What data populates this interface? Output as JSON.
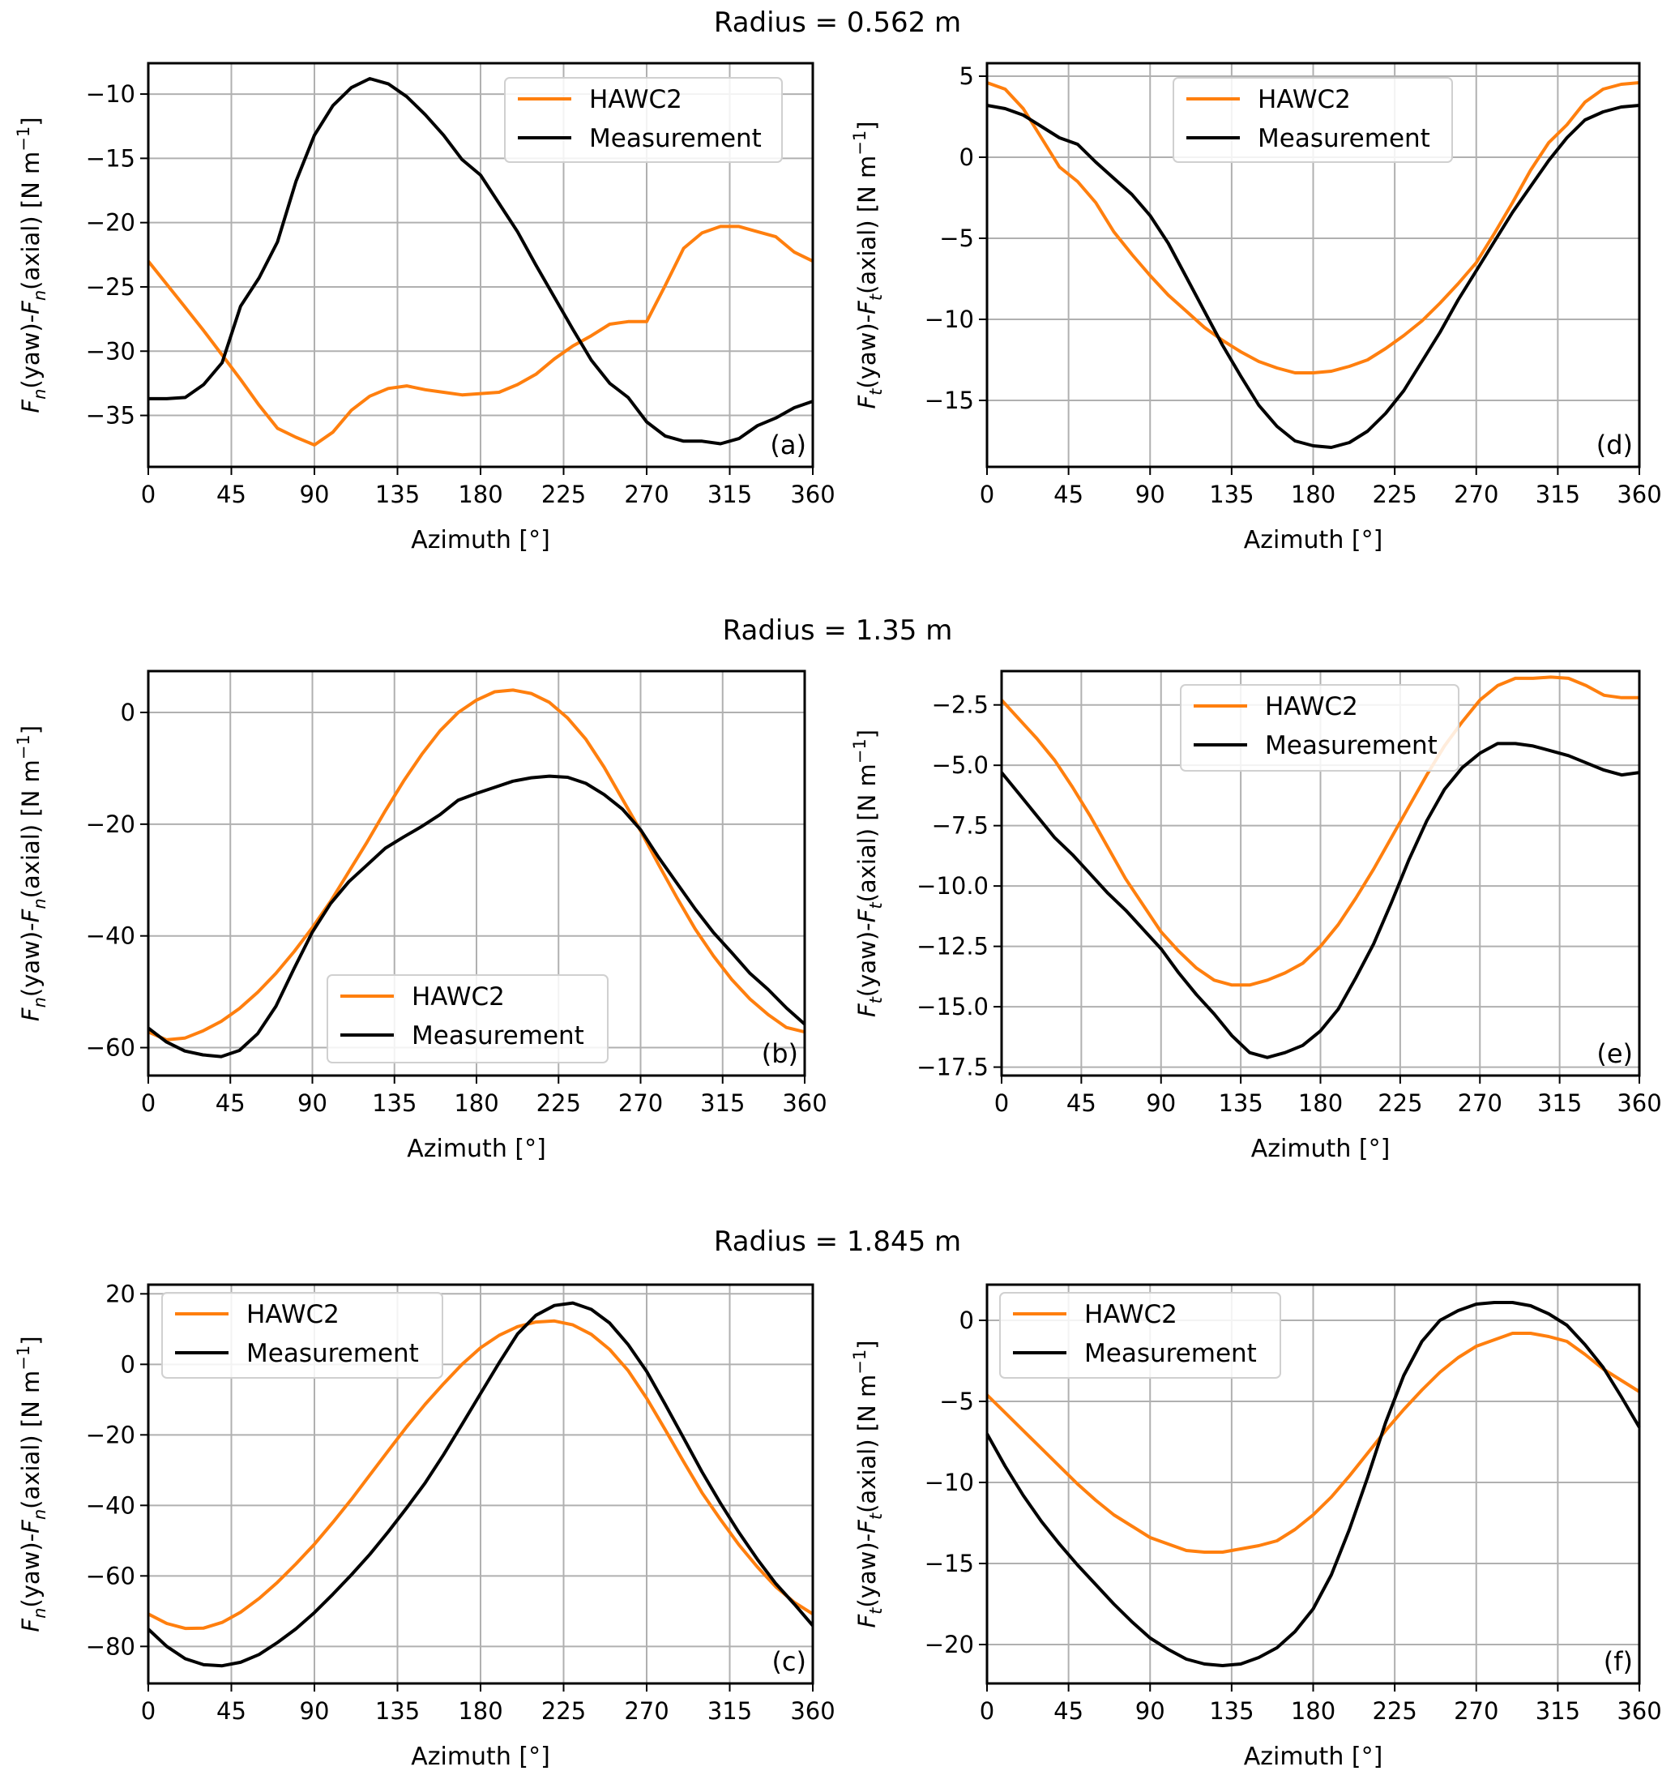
{
  "row_titles": [
    "Radius = 0.562 m",
    "Radius = 1.35 m",
    "Radius = 1.845 m"
  ],
  "colors": {
    "hawc2": "#ff7f0e",
    "measurement": "#000000",
    "grid": "#b0b0b0"
  },
  "chart_data": [
    {
      "type": "line",
      "panel": "(a)",
      "row_title": "Radius = 0.562 m",
      "xlabel": "Azimuth [°]",
      "ylabel": "F_n(yaw)-F_n(axial) [N m^-1]",
      "xlim": [
        0,
        360
      ],
      "ylim": [
        -39,
        -7.6
      ],
      "xticks": [
        0,
        45,
        90,
        135,
        180,
        225,
        270,
        315,
        360
      ],
      "yticks": [
        -35,
        -30,
        -25,
        -20,
        -15,
        -10
      ],
      "ytick_labels": [
        "−35",
        "−30",
        "−25",
        "−20",
        "−15",
        "−10"
      ],
      "grid": true,
      "legend": "top-right",
      "panel_label_pos": "bottom-right",
      "x": [
        0,
        10,
        20,
        30,
        40,
        50,
        60,
        70,
        80,
        90,
        100,
        110,
        120,
        130,
        140,
        150,
        160,
        170,
        180,
        190,
        200,
        210,
        220,
        230,
        240,
        250,
        260,
        270,
        280,
        290,
        300,
        310,
        320,
        330,
        340,
        350,
        360
      ],
      "series": [
        {
          "name": "HAWC2",
          "values": [
            -23,
            -24.8,
            -26.6,
            -28.4,
            -30.3,
            -32.2,
            -34.2,
            -36,
            -36.7,
            -37.3,
            -36.3,
            -34.6,
            -33.5,
            -32.9,
            -32.7,
            -33,
            -33.2,
            -33.4,
            -33.3,
            -33.2,
            -32.6,
            -31.8,
            -30.6,
            -29.6,
            -28.8,
            -27.9,
            -27.7,
            -27.7,
            -24.9,
            -22,
            -20.8,
            -20.3,
            -20.3,
            -20.7,
            -21.1,
            -22.3,
            -23
          ]
        },
        {
          "name": "Measurement",
          "values": [
            -33.7,
            -33.7,
            -33.6,
            -32.6,
            -30.9,
            -26.5,
            -24.3,
            -21.5,
            -16.8,
            -13.2,
            -10.9,
            -9.5,
            -8.8,
            -9.2,
            -10.2,
            -11.6,
            -13.2,
            -15.1,
            -16.3,
            -18.5,
            -20.7,
            -23.3,
            -25.8,
            -28.3,
            -30.7,
            -32.5,
            -33.6,
            -35.5,
            -36.6,
            -37,
            -37,
            -37.2,
            -36.8,
            -35.8,
            -35.2,
            -34.4,
            -33.9
          ]
        }
      ]
    },
    {
      "type": "line",
      "panel": "(d)",
      "row_title": "Radius = 0.562 m",
      "xlabel": "Azimuth [°]",
      "ylabel": "F_t(yaw)-F_t(axial) [N m^-1]",
      "xlim": [
        0,
        360
      ],
      "ylim": [
        -19.1,
        5.8
      ],
      "xticks": [
        0,
        45,
        90,
        135,
        180,
        225,
        270,
        315,
        360
      ],
      "yticks": [
        -15,
        -10,
        -5,
        0,
        5
      ],
      "ytick_labels": [
        "−15",
        "−10",
        "−5",
        "0",
        "5"
      ],
      "grid": true,
      "legend": "top-center",
      "panel_label_pos": "bottom-right",
      "x": [
        0,
        10,
        20,
        30,
        40,
        50,
        60,
        70,
        80,
        90,
        100,
        110,
        120,
        130,
        140,
        150,
        160,
        170,
        180,
        190,
        200,
        210,
        220,
        230,
        240,
        250,
        260,
        270,
        280,
        290,
        300,
        310,
        320,
        330,
        340,
        350,
        360
      ],
      "series": [
        {
          "name": "HAWC2",
          "values": [
            4.6,
            4.2,
            3,
            1.2,
            -0.6,
            -1.5,
            -2.8,
            -4.6,
            -6,
            -7.3,
            -8.5,
            -9.5,
            -10.5,
            -11.3,
            -12,
            -12.6,
            -13,
            -13.3,
            -13.3,
            -13.2,
            -12.9,
            -12.5,
            -11.8,
            -11,
            -10.1,
            -9,
            -7.8,
            -6.5,
            -4.7,
            -2.8,
            -0.8,
            0.9,
            2,
            3.4,
            4.2,
            4.5,
            4.6
          ]
        },
        {
          "name": "Measurement",
          "values": [
            3.2,
            3,
            2.6,
            1.9,
            1.2,
            0.8,
            -0.3,
            -1.3,
            -2.3,
            -3.6,
            -5.3,
            -7.4,
            -9.5,
            -11.6,
            -13.5,
            -15.3,
            -16.6,
            -17.5,
            -17.8,
            -17.9,
            -17.6,
            -16.9,
            -15.8,
            -14.4,
            -12.6,
            -10.8,
            -8.8,
            -7,
            -5.2,
            -3.4,
            -1.8,
            -0.2,
            1.2,
            2.3,
            2.8,
            3.1,
            3.2
          ]
        }
      ]
    },
    {
      "type": "line",
      "panel": "(b)",
      "row_title": "Radius = 1.35 m",
      "xlabel": "Azimuth [°]",
      "ylabel": "F_n(yaw)-F_n(axial) [N m^-1]",
      "xlim": [
        0,
        360
      ],
      "ylim": [
        -65,
        7.4
      ],
      "xticks": [
        0,
        45,
        90,
        135,
        180,
        225,
        270,
        315,
        360
      ],
      "yticks": [
        -60,
        -40,
        -20,
        0
      ],
      "ytick_labels": [
        "−60",
        "−40",
        "−20",
        "0"
      ],
      "grid": true,
      "legend": "bottom-center",
      "panel_label_pos": "bottom-right",
      "x": [
        0,
        10,
        20,
        30,
        40,
        50,
        60,
        70,
        80,
        90,
        100,
        110,
        120,
        130,
        140,
        150,
        160,
        170,
        180,
        190,
        200,
        210,
        220,
        230,
        240,
        250,
        260,
        270,
        280,
        290,
        300,
        310,
        320,
        330,
        340,
        350,
        360
      ],
      "series": [
        {
          "name": "HAWC2",
          "values": [
            -57.2,
            -58.6,
            -58.3,
            -57,
            -55.3,
            -53,
            -50.1,
            -46.7,
            -42.8,
            -38.5,
            -33.8,
            -28.5,
            -23.2,
            -17.6,
            -12.3,
            -7.5,
            -3.3,
            0,
            2.2,
            3.7,
            4,
            3.4,
            1.8,
            -1,
            -4.8,
            -9.8,
            -15.5,
            -21.2,
            -27.3,
            -33.2,
            -38.8,
            -43.6,
            -47.8,
            -51.3,
            -54.1,
            -56.4,
            -57.2
          ]
        },
        {
          "name": "Measurement",
          "values": [
            -56.5,
            -59,
            -60.6,
            -61.3,
            -61.6,
            -60.5,
            -57.5,
            -52.6,
            -45.8,
            -39.3,
            -34.2,
            -30.3,
            -27.3,
            -24.3,
            -22.3,
            -20.4,
            -18.3,
            -15.7,
            -14.5,
            -13.4,
            -12.3,
            -11.7,
            -11.4,
            -11.6,
            -12.7,
            -14.7,
            -17.3,
            -21,
            -26,
            -30.6,
            -35.2,
            -39.4,
            -43,
            -46.7,
            -49.6,
            -52.9,
            -55.8
          ]
        }
      ]
    },
    {
      "type": "line",
      "panel": "(e)",
      "row_title": "Radius = 1.35 m",
      "xlabel": "Azimuth [°]",
      "ylabel": "F_t(yaw)-F_t(axial) [N m^-1]",
      "xlim": [
        0,
        360
      ],
      "ylim": [
        -17.85,
        -1.1
      ],
      "xticks": [
        0,
        45,
        90,
        135,
        180,
        225,
        270,
        315,
        360
      ],
      "yticks": [
        -17.5,
        -15.0,
        -12.5,
        -10.0,
        -7.5,
        -5.0,
        -2.5
      ],
      "ytick_labels": [
        "−17.5",
        "−15.0",
        "−12.5",
        "−10.0",
        "−7.5",
        "−5.0",
        "−2.5"
      ],
      "grid": true,
      "legend": "top-center",
      "panel_label_pos": "bottom-right",
      "x": [
        0,
        10,
        20,
        30,
        40,
        50,
        60,
        70,
        80,
        90,
        100,
        110,
        120,
        130,
        140,
        150,
        160,
        170,
        180,
        190,
        200,
        210,
        220,
        230,
        240,
        250,
        260,
        270,
        280,
        290,
        300,
        310,
        320,
        330,
        340,
        350,
        360
      ],
      "series": [
        {
          "name": "HAWC2",
          "values": [
            -2.3,
            -3.1,
            -3.9,
            -4.8,
            -5.9,
            -7.1,
            -8.4,
            -9.7,
            -10.8,
            -11.9,
            -12.7,
            -13.4,
            -13.9,
            -14.1,
            -14.1,
            -13.9,
            -13.6,
            -13.2,
            -12.5,
            -11.6,
            -10.5,
            -9.3,
            -8,
            -6.7,
            -5.4,
            -4.2,
            -3.2,
            -2.3,
            -1.7,
            -1.4,
            -1.4,
            -1.35,
            -1.4,
            -1.7,
            -2.1,
            -2.2,
            -2.2
          ]
        },
        {
          "name": "Measurement",
          "values": [
            -5.3,
            -6.2,
            -7.1,
            -8,
            -8.7,
            -9.5,
            -10.3,
            -11,
            -11.8,
            -12.6,
            -13.6,
            -14.5,
            -15.3,
            -16.2,
            -16.9,
            -17.1,
            -16.9,
            -16.6,
            -16,
            -15.1,
            -13.8,
            -12.4,
            -10.7,
            -8.9,
            -7.3,
            -6,
            -5.1,
            -4.5,
            -4.1,
            -4.1,
            -4.2,
            -4.4,
            -4.6,
            -4.9,
            -5.2,
            -5.4,
            -5.3
          ]
        }
      ]
    },
    {
      "type": "line",
      "panel": "(c)",
      "row_title": "Radius = 1.845 m",
      "xlabel": "Azimuth [°]",
      "ylabel": "F_n(yaw)-F_n(axial) [N m^-1]",
      "xlim": [
        0,
        360
      ],
      "ylim": [
        -90.5,
        22.6
      ],
      "xticks": [
        0,
        45,
        90,
        135,
        180,
        225,
        270,
        315,
        360
      ],
      "yticks": [
        -80,
        -60,
        -40,
        -20,
        0,
        20
      ],
      "ytick_labels": [
        "−80",
        "−60",
        "−40",
        "−20",
        "0",
        "20"
      ],
      "grid": true,
      "legend": "top-left",
      "panel_label_pos": "bottom-right",
      "x": [
        0,
        10,
        20,
        30,
        40,
        50,
        60,
        70,
        80,
        90,
        100,
        110,
        120,
        130,
        140,
        150,
        160,
        170,
        180,
        190,
        200,
        210,
        220,
        230,
        240,
        250,
        260,
        270,
        280,
        290,
        300,
        310,
        320,
        330,
        340,
        350,
        360
      ],
      "series": [
        {
          "name": "HAWC2",
          "values": [
            -70.8,
            -73.5,
            -74.9,
            -74.8,
            -73.2,
            -70.3,
            -66.4,
            -61.8,
            -56.6,
            -51,
            -44.8,
            -38.3,
            -31.4,
            -24.5,
            -17.7,
            -11.3,
            -5.5,
            0,
            4.7,
            8.2,
            10.7,
            12,
            12.3,
            11.2,
            8.5,
            4.2,
            -1.8,
            -9.6,
            -18.5,
            -27.6,
            -36.4,
            -44,
            -51.2,
            -57.5,
            -63.1,
            -67.5,
            -70.8
          ]
        },
        {
          "name": "Measurement",
          "values": [
            -75.1,
            -80,
            -83.5,
            -85.2,
            -85.5,
            -84.5,
            -82.3,
            -78.9,
            -75,
            -70.4,
            -65.2,
            -59.7,
            -53.9,
            -47.5,
            -40.7,
            -33.6,
            -25.6,
            -17,
            -8.3,
            0.4,
            8.6,
            13.9,
            16.7,
            17.4,
            15.6,
            11.7,
            5.6,
            -2,
            -11.3,
            -20.9,
            -30.5,
            -39.4,
            -47.7,
            -55.3,
            -62.2,
            -68,
            -74.1
          ]
        }
      ]
    },
    {
      "type": "line",
      "panel": "(f)",
      "row_title": "Radius = 1.845 m",
      "xlabel": "Azimuth [°]",
      "ylabel": "F_t(yaw)-F_t(axial) [N m^-1]",
      "xlim": [
        0,
        360
      ],
      "ylim": [
        -22.4,
        2.2
      ],
      "xticks": [
        0,
        45,
        90,
        135,
        180,
        225,
        270,
        315,
        360
      ],
      "yticks": [
        -20,
        -15,
        -10,
        -5,
        0
      ],
      "ytick_labels": [
        "−20",
        "−15",
        "−10",
        "−5",
        "0"
      ],
      "grid": true,
      "legend": "top-left",
      "panel_label_pos": "bottom-right",
      "x": [
        0,
        10,
        20,
        30,
        40,
        50,
        60,
        70,
        80,
        90,
        100,
        110,
        120,
        130,
        140,
        150,
        160,
        170,
        180,
        190,
        200,
        210,
        220,
        230,
        240,
        250,
        260,
        270,
        280,
        290,
        300,
        310,
        320,
        330,
        340,
        350,
        360
      ],
      "series": [
        {
          "name": "HAWC2",
          "values": [
            -4.6,
            -5.7,
            -6.8,
            -7.9,
            -9,
            -10.1,
            -11.1,
            -12,
            -12.7,
            -13.4,
            -13.8,
            -14.2,
            -14.3,
            -14.3,
            -14.1,
            -13.9,
            -13.6,
            -12.9,
            -12,
            -10.9,
            -9.6,
            -8.2,
            -6.8,
            -5.5,
            -4.3,
            -3.2,
            -2.3,
            -1.6,
            -1.2,
            -0.8,
            -0.8,
            -1,
            -1.3,
            -2.1,
            -3,
            -3.7,
            -4.4
          ]
        },
        {
          "name": "Measurement",
          "values": [
            -7,
            -9,
            -10.8,
            -12.4,
            -13.8,
            -15.1,
            -16.3,
            -17.5,
            -18.6,
            -19.6,
            -20.3,
            -20.9,
            -21.2,
            -21.3,
            -21.2,
            -20.8,
            -20.2,
            -19.2,
            -17.8,
            -15.7,
            -12.9,
            -9.7,
            -6.3,
            -3.4,
            -1.3,
            0,
            0.6,
            1,
            1.1,
            1.1,
            0.9,
            0.4,
            -0.3,
            -1.5,
            -2.9,
            -4.7,
            -6.6
          ]
        }
      ]
    }
  ],
  "legend_labels": [
    "HAWC2",
    "Measurement"
  ],
  "axis": {
    "x_label": "Azimuth [°]",
    "y_label_n_pre": "F",
    "y_label_n_sub": "n",
    "y_label_t_pre": "F",
    "y_label_t_sub": "t"
  }
}
